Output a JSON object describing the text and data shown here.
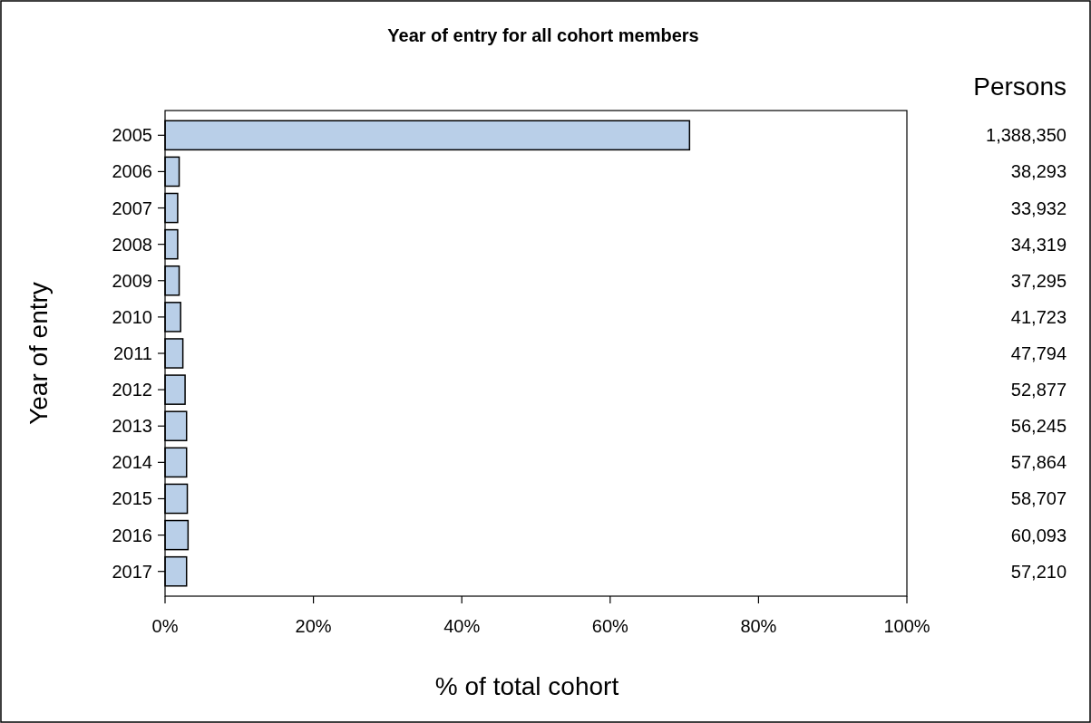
{
  "chart_data": {
    "type": "bar",
    "orientation": "horizontal",
    "title": "Year of entry for all cohort members",
    "xlabel": "% of total cohort",
    "ylabel": "Year of entry",
    "y2label": "Persons",
    "categories": [
      "2005",
      "2006",
      "2007",
      "2008",
      "2009",
      "2010",
      "2011",
      "2012",
      "2013",
      "2014",
      "2015",
      "2016",
      "2017"
    ],
    "values": [
      70.7,
      1.9,
      1.7,
      1.7,
      1.9,
      2.1,
      2.4,
      2.7,
      2.9,
      2.9,
      3.0,
      3.1,
      2.9
    ],
    "annotations": [
      "1,388,350",
      "38,293",
      "33,932",
      "34,319",
      "37,295",
      "41,723",
      "47,794",
      "52,877",
      "56,245",
      "57,864",
      "58,707",
      "60,093",
      "57,210"
    ],
    "color": "#b9cfe8",
    "xlim": [
      0,
      100
    ],
    "xticks": [
      {
        "value": 0,
        "label": "0%"
      },
      {
        "value": 20,
        "label": "20%"
      },
      {
        "value": 40,
        "label": "40%"
      },
      {
        "value": 60,
        "label": "60%"
      },
      {
        "value": 80,
        "label": "80%"
      },
      {
        "value": 100,
        "label": "100%"
      }
    ],
    "grid": false
  }
}
